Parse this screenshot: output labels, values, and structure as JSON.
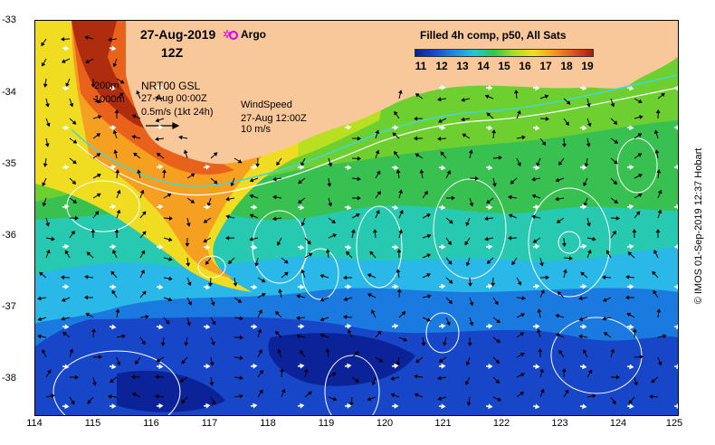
{
  "map": {
    "date": "27-Aug-2019",
    "time": "12Z",
    "argo_marker": "✲",
    "argo_label": "Argo",
    "depth_contour_200": "200m",
    "depth_contour_1000": "1000m",
    "current_title": "NRT00 GSL",
    "current_time": "27-Aug 00:00Z",
    "current_scale": "0.5m/s (1kt 24h)",
    "wind_title": "WindSpeed",
    "wind_time": "27-Aug 12:00Z",
    "wind_scale": "10 m/s",
    "legend_title": "Filled 4h comp, p50, All Sats",
    "colorbar_ticks": [
      "11",
      "12",
      "13",
      "14",
      "15",
      "16",
      "17",
      "18",
      "19"
    ],
    "lon_labels": [
      "114",
      "115",
      "116",
      "117",
      "118",
      "119",
      "120",
      "121",
      "122",
      "123",
      "124",
      "125"
    ],
    "lat_labels": [
      "-33",
      "-34",
      "-35",
      "-36",
      "-37",
      "-38"
    ],
    "credit": "© IMOS 01-Sep-2019 12:37 Hobart",
    "colors": {
      "land": "#f9c89a",
      "contour_200": "#40d8d8",
      "contour_1000": "#ffffff",
      "argo": "#e000e0"
    },
    "icons": [
      "current-arrow-icon",
      "wind-arrow-icon",
      "argo-float-icon"
    ]
  }
}
